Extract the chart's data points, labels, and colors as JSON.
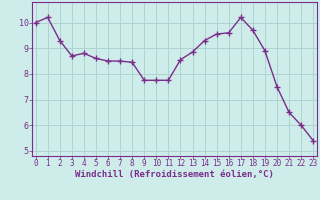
{
  "x": [
    0,
    1,
    2,
    3,
    4,
    5,
    6,
    7,
    8,
    9,
    10,
    11,
    12,
    13,
    14,
    15,
    16,
    17,
    18,
    19,
    20,
    21,
    22,
    23
  ],
  "y": [
    10.0,
    10.2,
    9.3,
    8.7,
    8.8,
    8.6,
    8.5,
    8.5,
    8.45,
    7.75,
    7.75,
    7.75,
    8.55,
    8.85,
    9.3,
    9.55,
    9.6,
    10.2,
    9.7,
    8.9,
    7.5,
    6.5,
    6.0,
    5.4
  ],
  "line_color": "#7b2d8b",
  "marker": "+",
  "marker_size": 4,
  "marker_linewidth": 1.0,
  "line_width": 1.0,
  "bg_color": "#ceecea",
  "grid_color": "#aed4d2",
  "xlabel": "Windchill (Refroidissement éolien,°C)",
  "xlabel_color": "#7b2d8b",
  "ylabel_ticks": [
    5,
    6,
    7,
    8,
    9,
    10
  ],
  "xticks": [
    0,
    1,
    2,
    3,
    4,
    5,
    6,
    7,
    8,
    9,
    10,
    11,
    12,
    13,
    14,
    15,
    16,
    17,
    18,
    19,
    20,
    21,
    22,
    23
  ],
  "ylim": [
    4.8,
    10.8
  ],
  "xlim": [
    -0.3,
    23.3
  ],
  "tick_color": "#7b2d8b",
  "spine_color": "#7b2d8b",
  "tick_fontsize": 5.5,
  "xlabel_fontsize": 6.5,
  "ytick_fontsize": 6.0
}
